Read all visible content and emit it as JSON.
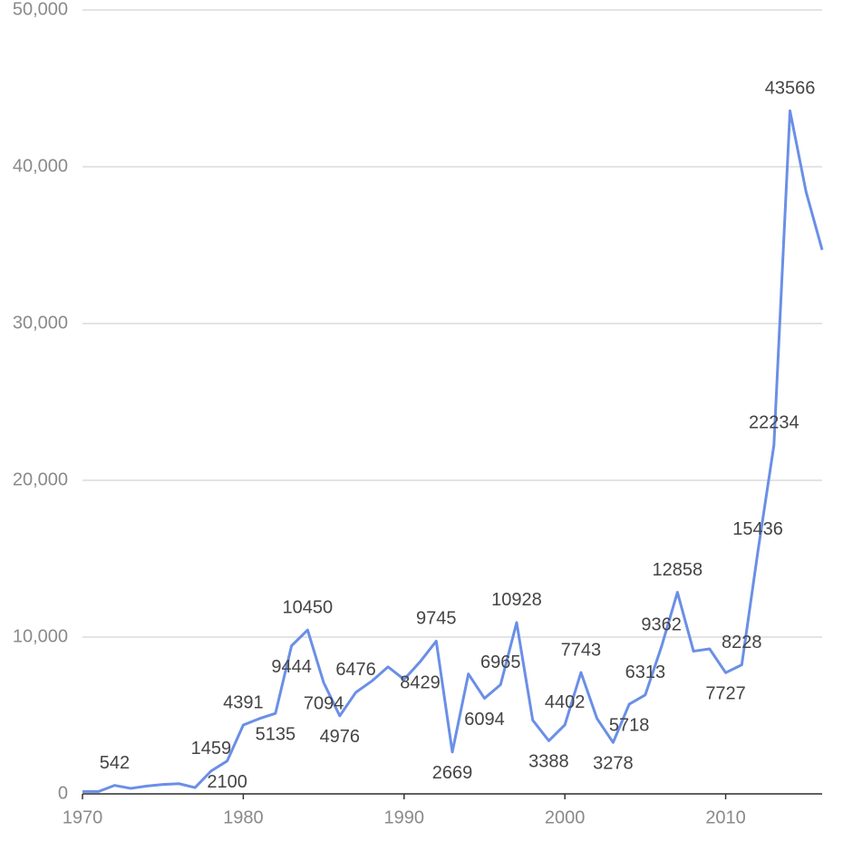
{
  "chart_data": {
    "type": "line",
    "x": [
      1970,
      1971,
      1972,
      1973,
      1974,
      1975,
      1976,
      1977,
      1978,
      1979,
      1980,
      1981,
      1982,
      1983,
      1984,
      1985,
      1986,
      1987,
      1988,
      1989,
      1990,
      1991,
      1992,
      1993,
      1994,
      1995,
      1996,
      1997,
      1998,
      1999,
      2000,
      2001,
      2002,
      2003,
      2004,
      2005,
      2006,
      2007,
      2008,
      2009,
      2010,
      2011,
      2012,
      2013,
      2014,
      2015,
      2016
    ],
    "series": [
      {
        "color": "#6a8fe6",
        "values": [
          150,
          150,
          542,
          350,
          500,
          600,
          650,
          400,
          1459,
          2100,
          4391,
          4800,
          5135,
          9444,
          10450,
          7094,
          4976,
          6476,
          7200,
          8100,
          7300,
          8429,
          9745,
          2669,
          7650,
          6094,
          6965,
          10928,
          4700,
          3388,
          4402,
          7743,
          4800,
          3278,
          5718,
          6313,
          9362,
          12858,
          9100,
          9250,
          7727,
          8228,
          15436,
          22234,
          43566,
          38400,
          34700
        ]
      }
    ],
    "xlim": [
      1970,
      2016
    ],
    "xticks": [
      1970,
      1980,
      1990,
      2000,
      2010
    ],
    "ylim": [
      0,
      50000
    ],
    "yticks": [
      0,
      {
        "value": 10000,
        "label": "10,000"
      },
      {
        "value": 20000,
        "label": "20,000"
      },
      {
        "value": 30000,
        "label": "30,000"
      },
      {
        "value": 40000,
        "label": "40,000"
      },
      {
        "value": 50000,
        "label": "50,000"
      }
    ],
    "grid": true
  }
}
